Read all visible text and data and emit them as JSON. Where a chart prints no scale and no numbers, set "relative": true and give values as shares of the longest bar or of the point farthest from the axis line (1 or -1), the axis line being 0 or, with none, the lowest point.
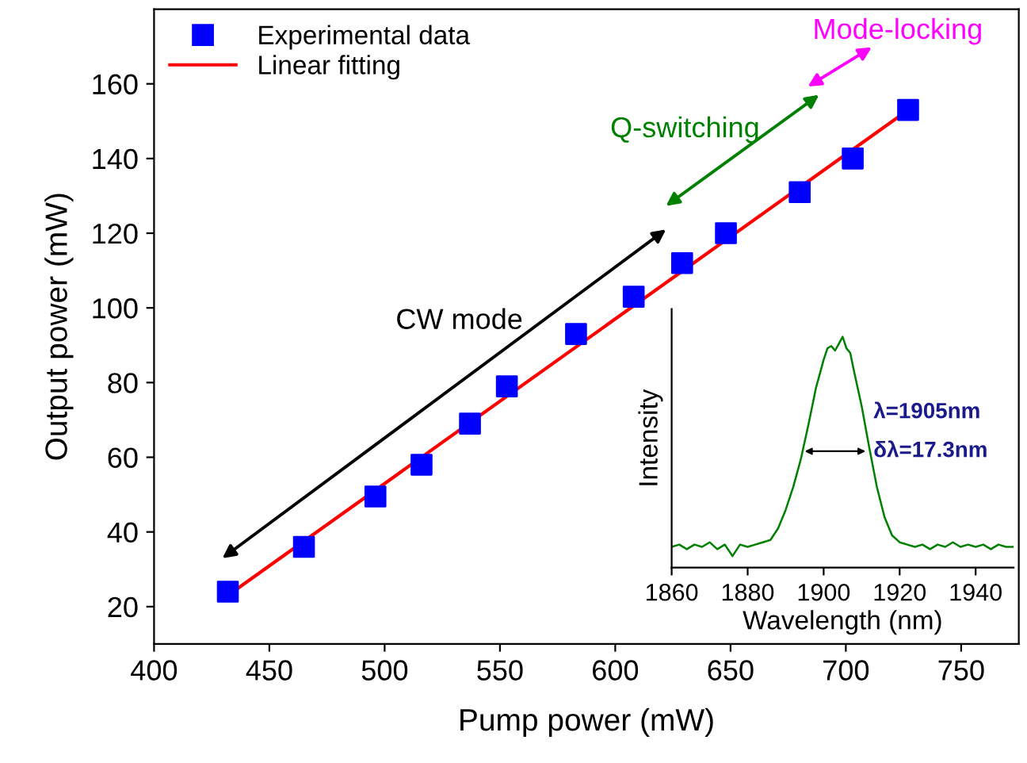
{
  "chart_data": [
    {
      "type": "scatter",
      "xlabel": "Pump power (mW)",
      "ylabel": "Output power (mW)",
      "xlim": [
        400,
        775
      ],
      "ylim": [
        10,
        180
      ],
      "xticks": [
        400,
        450,
        500,
        550,
        600,
        650,
        700,
        750
      ],
      "yticks": [
        20,
        40,
        60,
        80,
        100,
        120,
        140,
        160
      ],
      "grid": false,
      "legend": "top left",
      "series": [
        {
          "name": "Experimental data",
          "type": "scatter",
          "marker": "square",
          "color": "#0000ff",
          "x": [
            432,
            465,
            496,
            516,
            537,
            553,
            583,
            608,
            629,
            648,
            680,
            703,
            727
          ],
          "values": [
            24,
            36,
            49.5,
            58,
            69,
            79,
            93,
            103,
            112,
            120,
            131,
            140,
            153
          ]
        },
        {
          "name": "Linear fitting",
          "type": "line",
          "marker": "none",
          "line_style": "solid",
          "color": "#ff0000",
          "x": [
            432,
            727
          ],
          "values": [
            23,
            153
          ]
        }
      ],
      "annotations": [
        "CW mode",
        "Q-switching",
        "Mode-locking"
      ]
    },
    {
      "type": "line",
      "relative": true,
      "xlabel": "Wavelength (nm)",
      "ylabel": "Intensity",
      "xlim": [
        1860,
        1950
      ],
      "xticks": [
        1860,
        1880,
        1900,
        1920,
        1940
      ],
      "grid": false,
      "series": [
        {
          "color": "#008000",
          "x": [
            1860,
            1862,
            1864,
            1866,
            1868,
            1870,
            1872,
            1874,
            1876,
            1878,
            1880,
            1882,
            1884,
            1886,
            1888,
            1890,
            1892,
            1894,
            1896,
            1898,
            1900,
            1901,
            1902,
            1903,
            1904,
            1905,
            1906,
            1907,
            1908,
            1910,
            1912,
            1914,
            1916,
            1918,
            1920,
            1922,
            1924,
            1926,
            1928,
            1930,
            1932,
            1934,
            1936,
            1938,
            1940,
            1942,
            1944,
            1946,
            1948,
            1950
          ],
          "values": [
            0.09,
            0.1,
            0.08,
            0.1,
            0.09,
            0.11,
            0.08,
            0.1,
            0.05,
            0.1,
            0.09,
            0.1,
            0.11,
            0.12,
            0.17,
            0.25,
            0.35,
            0.47,
            0.62,
            0.78,
            0.9,
            0.95,
            0.96,
            0.94,
            0.97,
            1.0,
            0.95,
            0.93,
            0.85,
            0.7,
            0.52,
            0.35,
            0.22,
            0.14,
            0.11,
            0.1,
            0.09,
            0.1,
            0.08,
            0.1,
            0.09,
            0.11,
            0.09,
            0.1,
            0.09,
            0.1,
            0.08,
            0.1,
            0.09,
            0.09
          ]
        }
      ],
      "annotations": [
        "λ=1905nm",
        "δλ=17.3nm"
      ]
    }
  ]
}
